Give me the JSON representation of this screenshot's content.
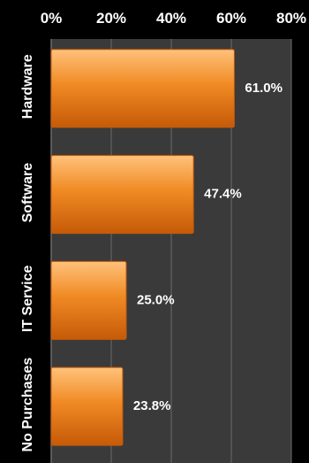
{
  "chart_data": {
    "type": "bar",
    "orientation": "horizontal",
    "categories": [
      "Hardware",
      "Software",
      "IT Service",
      "No Purchases"
    ],
    "values": [
      61.0,
      47.4,
      25.0,
      23.8
    ],
    "value_labels": [
      "61.0%",
      "47.4%",
      "25.0%",
      "23.8%"
    ],
    "x_ticks": [
      "0%",
      "20%",
      "40%",
      "60%",
      "80%"
    ],
    "xlim": [
      0,
      80
    ],
    "grid": true,
    "x_axis_position": "top",
    "colors": {
      "background": "#000000",
      "plot_area": "#3a3a3a",
      "bar": "#f08a24",
      "bar_light": "#ffc27a",
      "bar_dark": "#c65a08",
      "grid": "#6b6b6b",
      "text": "#ffffff"
    }
  }
}
